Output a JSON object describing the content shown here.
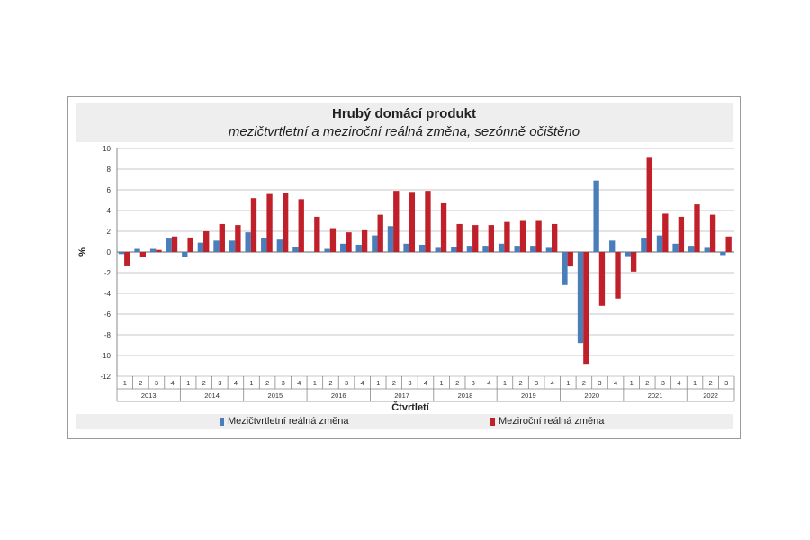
{
  "chart_data": {
    "type": "bar",
    "title": "Hrubý domácí produkt",
    "subtitle": "mezičtvrtletní a meziroční reálná změna, sezónně očištěno",
    "xlabel": "Čtvrtletí",
    "ylabel": "%",
    "ylim": [
      -12,
      10
    ],
    "yticks": [
      "10",
      "8",
      "6",
      "4",
      "2",
      "0",
      "-2",
      "-4",
      "-6",
      "-8",
      "-10",
      "-12"
    ],
    "grid": true,
    "legend_position": "bottom",
    "quarters": [
      "1",
      "2",
      "3",
      "4",
      "1",
      "2",
      "3",
      "4",
      "1",
      "2",
      "3",
      "4",
      "1",
      "2",
      "3",
      "4",
      "1",
      "2",
      "3",
      "4",
      "1",
      "2",
      "3",
      "4",
      "1",
      "2",
      "3",
      "4",
      "1",
      "2",
      "3",
      "4",
      "1",
      "2",
      "3",
      "4",
      "1",
      "2",
      "3"
    ],
    "years": [
      "2013",
      "2014",
      "2015",
      "2016",
      "2017",
      "2018",
      "2019",
      "2020",
      "2021",
      "2022"
    ],
    "series": [
      {
        "name": "Mezičtvrtletní reálná změna",
        "color": "#4a7ebb",
        "values": [
          -0.2,
          0.3,
          0.3,
          1.3,
          -0.5,
          0.9,
          1.1,
          1.1,
          1.9,
          1.3,
          1.2,
          0.5,
          0.0,
          0.3,
          0.8,
          0.7,
          1.6,
          2.5,
          0.8,
          0.7,
          0.4,
          0.5,
          0.6,
          0.6,
          0.8,
          0.6,
          0.6,
          0.4,
          -3.2,
          -8.8,
          6.9,
          1.1,
          -0.4,
          1.3,
          1.6,
          0.8,
          0.6,
          0.4,
          -0.3
        ]
      },
      {
        "name": "Meziroční reálná změna",
        "color": "#c0202a",
        "values": [
          -1.3,
          -0.5,
          0.2,
          1.5,
          1.4,
          2.0,
          2.7,
          2.6,
          5.2,
          5.6,
          5.7,
          5.1,
          3.4,
          2.3,
          1.9,
          2.1,
          3.6,
          5.9,
          5.8,
          5.9,
          4.7,
          2.7,
          2.6,
          2.6,
          2.9,
          3.0,
          3.0,
          2.7,
          -1.4,
          -10.8,
          -5.2,
          -4.5,
          -1.9,
          9.1,
          3.7,
          3.4,
          4.6,
          3.6,
          1.5
        ]
      }
    ]
  }
}
